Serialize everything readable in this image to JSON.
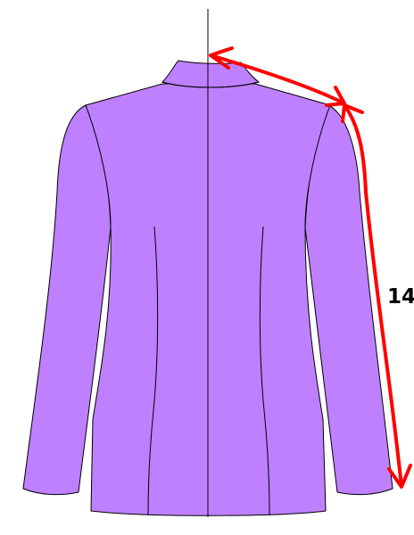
{
  "diagram": {
    "colors": {
      "garment_fill": "#bf80ff",
      "outline": "#000000",
      "arrow": "#ff0000",
      "background": "#ffffff"
    },
    "measurement": {
      "label": "14"
    }
  }
}
